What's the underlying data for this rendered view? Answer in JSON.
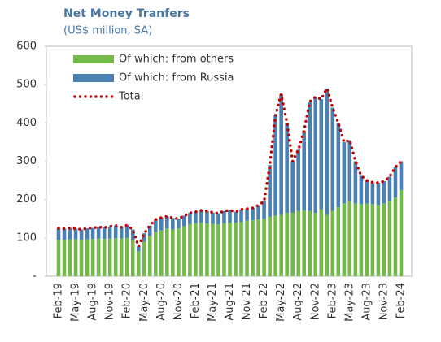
{
  "chart_data": {
    "type": "bar",
    "stacked": true,
    "title": "Net Money Tranfers",
    "subtitle": "(US$ million, SA)",
    "categories": [
      "Feb-19",
      null,
      null,
      "May-19",
      null,
      null,
      "Aug-19",
      null,
      null,
      "Nov-19",
      null,
      null,
      "Feb-20",
      null,
      null,
      "May-20",
      null,
      null,
      "Aug-20",
      null,
      null,
      "Nov-20",
      null,
      null,
      "Feb-21",
      null,
      null,
      "May-21",
      null,
      null,
      "Aug-21",
      null,
      null,
      "Nov-21",
      null,
      null,
      "Feb-22",
      null,
      null,
      "May-22",
      null,
      null,
      "Aug-22",
      null,
      null,
      "Nov-22",
      null,
      null,
      "Feb-23",
      null,
      null,
      "May-23",
      null,
      null,
      "Aug-23",
      null,
      null,
      "Nov-23",
      null,
      null,
      "Feb-24"
    ],
    "series": [
      {
        "name": "Of which: from others",
        "type": "bar",
        "color": "#75b84a",
        "values": [
          95,
          95,
          96,
          96,
          95,
          96,
          97,
          98,
          97,
          98,
          99,
          98,
          100,
          95,
          65,
          90,
          105,
          115,
          120,
          125,
          122,
          125,
          130,
          135,
          138,
          140,
          138,
          136,
          135,
          138,
          140,
          140,
          142,
          145,
          146,
          148,
          150,
          155,
          158,
          160,
          165,
          165,
          170,
          172,
          170,
          165,
          175,
          160,
          170,
          180,
          190,
          195,
          190,
          188,
          190,
          188,
          186,
          190,
          195,
          205,
          225
        ]
      },
      {
        "name": "Of which: from Russia",
        "type": "bar",
        "color": "#4a80b2",
        "values": [
          30,
          29,
          30,
          28,
          27,
          29,
          29,
          30,
          30,
          32,
          33,
          30,
          33,
          27,
          13,
          22,
          27,
          33,
          33,
          31,
          30,
          25,
          28,
          30,
          30,
          32,
          32,
          30,
          29,
          32,
          32,
          28,
          32,
          31,
          32,
          37,
          45,
          135,
          262,
          315,
          235,
          135,
          160,
          208,
          285,
          303,
          287,
          330,
          270,
          220,
          160,
          160,
          110,
          74,
          60,
          57,
          58,
          58,
          65,
          80,
          75
        ]
      },
      {
        "name": "Total",
        "type": "line",
        "color": "#c00000",
        "values": [
          125,
          124,
          126,
          124,
          122,
          125,
          126,
          128,
          127,
          130,
          132,
          128,
          133,
          122,
          78,
          112,
          132,
          148,
          153,
          156,
          152,
          150,
          158,
          165,
          168,
          172,
          170,
          166,
          164,
          170,
          172,
          168,
          174,
          176,
          178,
          185,
          195,
          290,
          420,
          475,
          400,
          300,
          330,
          380,
          455,
          468,
          462,
          490,
          440,
          400,
          350,
          355,
          300,
          262,
          250,
          245,
          244,
          248,
          260,
          285,
          300
        ]
      }
    ],
    "ylim": [
      0,
      600
    ],
    "yticks": [
      {
        "value": 0,
        "label": "-"
      },
      100,
      200,
      300,
      400,
      500,
      600
    ],
    "grid": false,
    "legend": "upper-left"
  }
}
